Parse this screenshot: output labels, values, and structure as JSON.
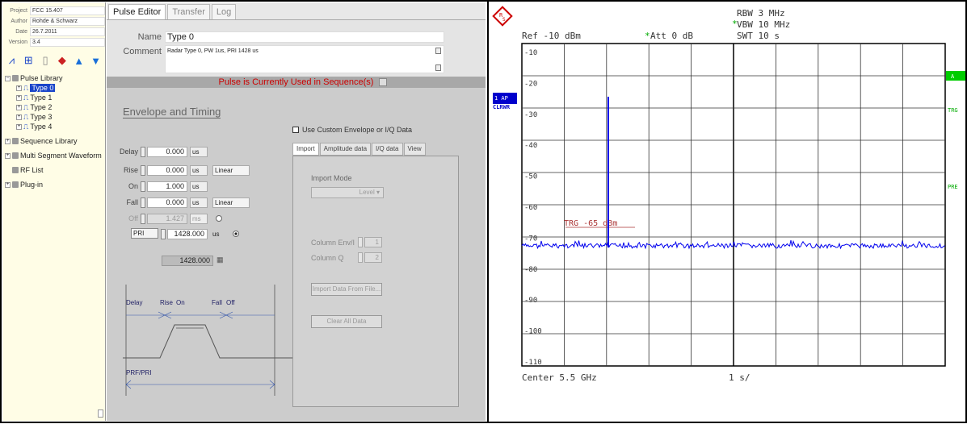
{
  "sidebar": {
    "meta": [
      {
        "key": "Project",
        "value": "FCC 15.407"
      },
      {
        "key": "Author",
        "value": "Rohde & Schwarz"
      },
      {
        "key": "Date",
        "value": "26.7.2011"
      },
      {
        "key": "Version",
        "value": "3.4"
      }
    ],
    "tree": {
      "pulse_library": "Pulse Library",
      "types": [
        "Type 0",
        "Type 1",
        "Type 2",
        "Type 3",
        "Type 4"
      ],
      "sequence_library": "Sequence Library",
      "multi_segment": "Multi Segment Waveform",
      "rf_list": "RF List",
      "plugin": "Plug-in"
    }
  },
  "tabs": [
    "Pulse Editor",
    "Transfer",
    "Log"
  ],
  "form": {
    "name_label": "Name",
    "name_value": "Type 0",
    "comment_label": "Comment",
    "comment_value": "Radar Type 0, PW 1us, PRI 1428 us",
    "banner": "Pulse is Currently Used in Sequence(s)",
    "envelope_title": "Envelope and Timing",
    "custom_checkbox": "Use Custom Envelope or I/Q Data"
  },
  "params": {
    "delay": {
      "label": "Delay",
      "value": "0.000",
      "unit": "us"
    },
    "rise": {
      "label": "Rise",
      "value": "0.000",
      "unit": "us",
      "shape": "Linear"
    },
    "on": {
      "label": "On",
      "value": "1.000",
      "unit": "us"
    },
    "fall": {
      "label": "Fall",
      "value": "0.000",
      "unit": "us",
      "shape": "Linear"
    },
    "off": {
      "label": "Off",
      "value": "1.427",
      "unit": "ms"
    },
    "pri": {
      "label": "PRI",
      "value": "1428.000",
      "unit": "us"
    },
    "total": "1428.000"
  },
  "diagram": {
    "delay": "Delay",
    "rise": "Rise",
    "on": "On",
    "fall": "Fall",
    "off": "Off",
    "prf": "PRF/PRI"
  },
  "import_tabs": [
    "Import",
    "Amplitude data",
    "I/Q data",
    "View"
  ],
  "import": {
    "mode_label": "Import Mode",
    "mode_value": "Level",
    "col_env_label": "Column Env/I",
    "col_env_value": "1",
    "col_q_label": "Column Q",
    "col_q_value": "2",
    "import_button": "Import Data From File...",
    "clear_button": "Clear All Data"
  },
  "spectrum": {
    "rbw": "RBW 3 MHz",
    "vbw": "VBW 10 MHz",
    "swt": "SWT 10 s",
    "ref": "Ref -10 dBm",
    "att": "Att  0 dB",
    "trace_label_1": "1 AP",
    "trace_label_2": "CLRWR",
    "side_a": "A",
    "side_trg": "TRG",
    "side_pre": "PRE",
    "trigger_label": "TRG -65 dBm",
    "center": "Center 5.5 GHz",
    "sweep_time": "1 s/",
    "y_labels": [
      "-10",
      "-20",
      "-30",
      "-40",
      "-50",
      "-60",
      "-70",
      "-80",
      "-90",
      "-100",
      "-110"
    ],
    "colors": {
      "trace": "#0000ee",
      "trigger": "#aa3333",
      "marker_green": "#00aa00"
    }
  }
}
